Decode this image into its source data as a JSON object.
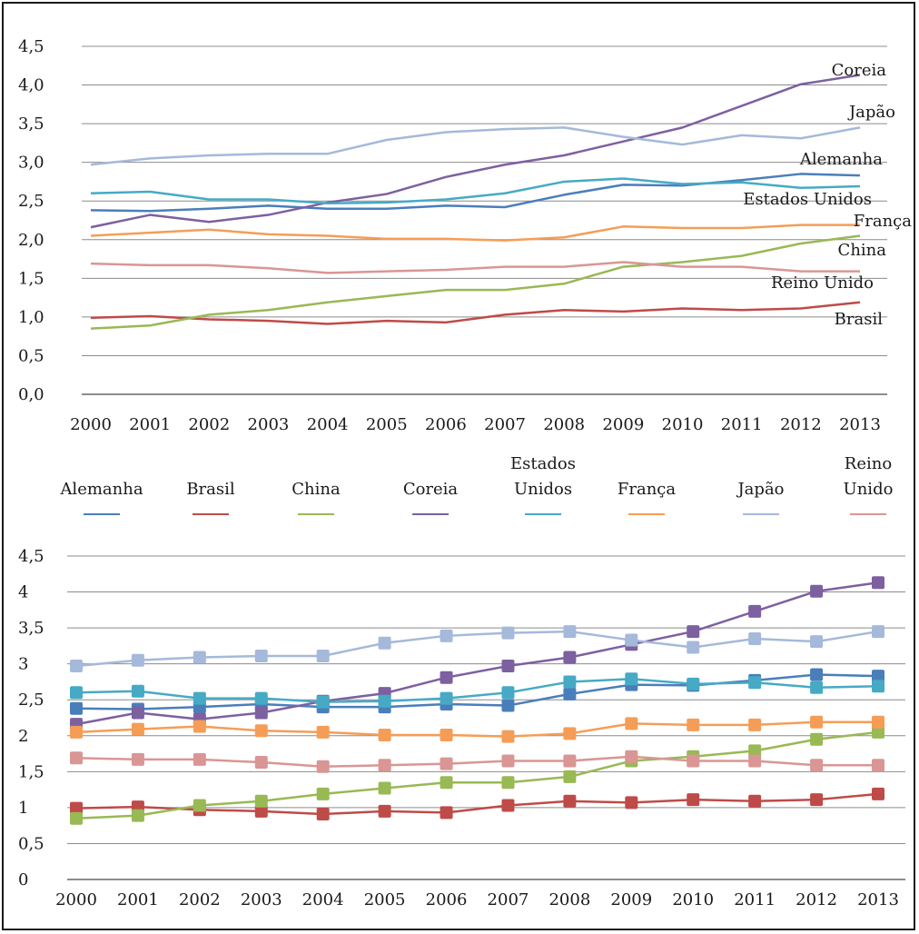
{
  "chart_data": [
    {
      "type": "line",
      "ylim": [
        0,
        4.5
      ],
      "y_ticks": [
        "0,0",
        "0,5",
        "1,0",
        "1,5",
        "2,0",
        "2,5",
        "3,0",
        "3,5",
        "4,0",
        "4,5"
      ],
      "grid": true,
      "legend": "bottom",
      "end_labels": true,
      "categories": [
        "2000",
        "2001",
        "2002",
        "2003",
        "2004",
        "2005",
        "2006",
        "2007",
        "2008",
        "2009",
        "2010",
        "2011",
        "2012",
        "2013"
      ],
      "series": [
        {
          "name": "Alemanha",
          "color": "#4a7ebb",
          "values": [
            2.38,
            2.37,
            2.4,
            2.44,
            2.4,
            2.4,
            2.44,
            2.42,
            2.58,
            2.71,
            2.7,
            2.77,
            2.85,
            2.83
          ]
        },
        {
          "name": "Brasil",
          "color": "#be4b48",
          "values": [
            0.99,
            1.01,
            0.97,
            0.95,
            0.91,
            0.95,
            0.93,
            1.03,
            1.09,
            1.07,
            1.11,
            1.09,
            1.11,
            1.19
          ]
        },
        {
          "name": "China",
          "color": "#98b954",
          "values": [
            0.85,
            0.89,
            1.03,
            1.09,
            1.19,
            1.27,
            1.35,
            1.35,
            1.43,
            1.65,
            1.71,
            1.79,
            1.95,
            2.05
          ]
        },
        {
          "name": "Coreia",
          "color": "#7d60a0",
          "values": [
            2.16,
            2.32,
            2.23,
            2.32,
            2.48,
            2.59,
            2.81,
            2.97,
            3.09,
            3.27,
            3.45,
            3.73,
            4.01,
            4.13
          ]
        },
        {
          "name": "Estados Unidos",
          "color": "#46aac5",
          "values": [
            2.6,
            2.62,
            2.52,
            2.52,
            2.47,
            2.48,
            2.52,
            2.6,
            2.75,
            2.79,
            2.72,
            2.74,
            2.67,
            2.69
          ]
        },
        {
          "name": "França",
          "color": "#f59d56",
          "values": [
            2.05,
            2.09,
            2.13,
            2.07,
            2.05,
            2.01,
            2.01,
            1.99,
            2.03,
            2.17,
            2.15,
            2.15,
            2.19,
            2.19
          ]
        },
        {
          "name": "Japão",
          "color": "#a5b9da",
          "values": [
            2.97,
            3.05,
            3.09,
            3.11,
            3.11,
            3.29,
            3.39,
            3.43,
            3.45,
            3.33,
            3.23,
            3.35,
            3.31,
            3.45
          ]
        },
        {
          "name": "Reino Unido",
          "color": "#d99694",
          "values": [
            1.69,
            1.67,
            1.67,
            1.63,
            1.57,
            1.59,
            1.61,
            1.65,
            1.65,
            1.71,
            1.65,
            1.65,
            1.59,
            1.59
          ]
        }
      ]
    },
    {
      "type": "line",
      "markers": "square",
      "ylim": [
        0,
        4.5
      ],
      "y_ticks": [
        "0",
        "0,5",
        "1",
        "1,5",
        "2",
        "2,5",
        "3",
        "3,5",
        "4",
        "4,5"
      ],
      "grid": true,
      "legend": "none",
      "categories": [
        "2000",
        "2001",
        "2002",
        "2003",
        "2004",
        "2005",
        "2006",
        "2007",
        "2008",
        "2009",
        "2010",
        "2011",
        "2012",
        "2013"
      ],
      "series": [
        {
          "color": "#4a7ebb",
          "values": [
            2.38,
            2.37,
            2.4,
            2.44,
            2.4,
            2.4,
            2.44,
            2.42,
            2.58,
            2.71,
            2.7,
            2.77,
            2.85,
            2.83
          ]
        },
        {
          "color": "#be4b48",
          "values": [
            0.99,
            1.01,
            0.97,
            0.95,
            0.91,
            0.95,
            0.93,
            1.03,
            1.09,
            1.07,
            1.11,
            1.09,
            1.11,
            1.19
          ]
        },
        {
          "color": "#98b954",
          "values": [
            0.85,
            0.89,
            1.03,
            1.09,
            1.19,
            1.27,
            1.35,
            1.35,
            1.43,
            1.65,
            1.71,
            1.79,
            1.95,
            2.05
          ]
        },
        {
          "color": "#7d60a0",
          "values": [
            2.16,
            2.32,
            2.23,
            2.32,
            2.48,
            2.59,
            2.81,
            2.97,
            3.09,
            3.27,
            3.45,
            3.73,
            4.01,
            4.13
          ]
        },
        {
          "color": "#46aac5",
          "values": [
            2.6,
            2.62,
            2.52,
            2.52,
            2.47,
            2.48,
            2.52,
            2.6,
            2.75,
            2.79,
            2.72,
            2.74,
            2.67,
            2.69
          ]
        },
        {
          "color": "#f59d56",
          "values": [
            2.05,
            2.09,
            2.13,
            2.07,
            2.05,
            2.01,
            2.01,
            1.99,
            2.03,
            2.17,
            2.15,
            2.15,
            2.19,
            2.19
          ]
        },
        {
          "color": "#a5b9da",
          "values": [
            2.97,
            3.05,
            3.09,
            3.11,
            3.11,
            3.29,
            3.39,
            3.43,
            3.45,
            3.33,
            3.23,
            3.35,
            3.31,
            3.45
          ]
        },
        {
          "color": "#d99694",
          "values": [
            1.69,
            1.67,
            1.67,
            1.63,
            1.57,
            1.59,
            1.61,
            1.65,
            1.65,
            1.71,
            1.65,
            1.65,
            1.59,
            1.59
          ]
        }
      ]
    }
  ],
  "legend_items": [
    {
      "text": "Alemanha",
      "color": "#4a7ebb"
    },
    {
      "text": "Brasil",
      "color": "#be4b48"
    },
    {
      "text": "China",
      "color": "#98b954"
    },
    {
      "text": "Coreia",
      "color": "#7d60a0"
    },
    {
      "text": "Estados\nUnidos",
      "color": "#46aac5"
    },
    {
      "text": "França",
      "color": "#f59d56"
    },
    {
      "text": "Japão",
      "color": "#a5b9da"
    },
    {
      "text": "Reino\nUnido",
      "color": "#d99694"
    }
  ],
  "end_labels": [
    "Coreia",
    "Japão",
    "Alemanha",
    "Estados Unidos",
    "França",
    "China",
    "Reino Unido",
    "Brasil"
  ]
}
